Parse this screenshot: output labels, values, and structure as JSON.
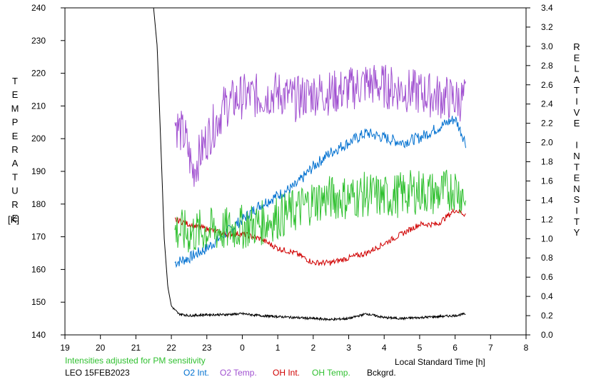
{
  "chart_data": {
    "type": "line",
    "xlabel": "Local Standard Time [h]",
    "ylabel_left": "TEMPERATURE",
    "ylabel_left_unit": "[K]",
    "ylabel_right": "RELATIVE INTENSITY",
    "xlim": [
      19,
      32
    ],
    "ylim_left": [
      140,
      240
    ],
    "ylim_right": [
      0.0,
      3.4
    ],
    "x_ticks": [
      19,
      20,
      21,
      22,
      23,
      24,
      25,
      26,
      27,
      28,
      29,
      30,
      31,
      32
    ],
    "x_tick_labels": [
      "19",
      "20",
      "21",
      "22",
      "23",
      "0",
      "1",
      "2",
      "3",
      "4",
      "5",
      "6",
      "7",
      "8"
    ],
    "left_ticks": [
      "140",
      "150",
      "160",
      "170",
      "180",
      "190",
      "200",
      "210",
      "220",
      "230",
      "240"
    ],
    "right_ticks": [
      "0.0",
      "0.2",
      "0.4",
      "0.6",
      "0.8",
      "1.0",
      "1.2",
      "1.4",
      "1.6",
      "1.8",
      "2.0",
      "2.2",
      "2.4",
      "2.6",
      "2.8",
      "3.0",
      "3.2",
      "3.4"
    ],
    "note": "Intensities adjusted for PM sensitivity",
    "footer_label": "LEO 15FEB2023",
    "series": [
      {
        "name": "O2 Int.",
        "axis": "right",
        "color": "#0070d0",
        "x": [
          22.1,
          22.5,
          23.0,
          23.5,
          24.0,
          24.5,
          25.0,
          25.5,
          26.0,
          26.5,
          27.0,
          27.5,
          28.0,
          28.5,
          29.0,
          29.5,
          30.0,
          30.3
        ],
        "values": [
          0.75,
          0.8,
          0.9,
          1.05,
          1.2,
          1.35,
          1.45,
          1.55,
          1.75,
          1.9,
          2.0,
          2.1,
          2.05,
          2.0,
          2.05,
          2.15,
          2.25,
          2.0
        ]
      },
      {
        "name": "O2 Temp.",
        "axis": "left",
        "color": "#a050d0",
        "x": [
          22.1,
          22.4,
          22.6,
          23.0,
          23.5,
          24.0,
          24.5,
          25.0,
          25.5,
          26.0,
          26.5,
          27.0,
          27.5,
          28.0,
          28.5,
          29.0,
          29.5,
          30.0,
          30.3
        ],
        "values": [
          205,
          200,
          190,
          200,
          210,
          213,
          213,
          214,
          212,
          214,
          214,
          215,
          217,
          216,
          215,
          214,
          213,
          212,
          212
        ]
      },
      {
        "name": "OH Int.",
        "axis": "right",
        "color": "#d00000",
        "x": [
          22.1,
          22.5,
          23.0,
          23.5,
          24.0,
          24.5,
          25.0,
          25.5,
          26.0,
          26.5,
          27.0,
          27.5,
          28.0,
          28.5,
          29.0,
          29.5,
          30.0,
          30.3
        ],
        "values": [
          1.2,
          1.15,
          1.1,
          1.05,
          1.05,
          1.0,
          0.9,
          0.85,
          0.75,
          0.75,
          0.8,
          0.85,
          0.95,
          1.05,
          1.15,
          1.15,
          1.3,
          1.25
        ]
      },
      {
        "name": "OH Temp.",
        "axis": "left",
        "color": "#30c030",
        "x": [
          22.1,
          22.5,
          23.0,
          23.5,
          24.0,
          24.5,
          25.0,
          25.5,
          26.0,
          26.5,
          27.0,
          27.5,
          28.0,
          28.5,
          29.0,
          29.5,
          30.0,
          30.3
        ],
        "values": [
          172,
          171,
          172,
          172,
          173,
          174,
          176,
          178,
          181,
          182,
          182,
          183,
          182,
          183,
          184,
          183,
          185,
          182
        ]
      },
      {
        "name": "Bckgrd.",
        "axis": "right",
        "color": "#000000",
        "x": [
          21.5,
          21.6,
          21.7,
          21.8,
          21.9,
          22.0,
          22.2,
          22.5,
          23.0,
          23.5,
          24.0,
          24.5,
          25.0,
          25.5,
          26.0,
          26.5,
          27.0,
          27.5,
          28.0,
          28.5,
          29.0,
          29.5,
          30.0,
          30.3
        ],
        "values": [
          3.4,
          3.0,
          2.0,
          1.0,
          0.5,
          0.3,
          0.22,
          0.2,
          0.21,
          0.21,
          0.22,
          0.2,
          0.19,
          0.18,
          0.17,
          0.16,
          0.17,
          0.22,
          0.18,
          0.17,
          0.18,
          0.19,
          0.2,
          0.22
        ]
      }
    ]
  },
  "legend_colors": {
    "note": "#30c030",
    "footer_label": "#000000"
  }
}
